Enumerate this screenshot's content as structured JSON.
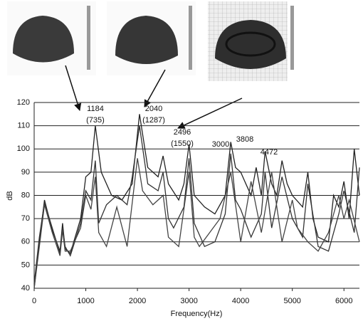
{
  "chart_data": {
    "type": "line",
    "xlabel": "Frequency(Hz)",
    "ylabel": "dB",
    "xlim": [
      0,
      6300
    ],
    "ylim": [
      40,
      120
    ],
    "xticks": [
      0,
      1000,
      2000,
      3000,
      4000,
      5000,
      6000
    ],
    "yticks": [
      40,
      50,
      60,
      70,
      80,
      90,
      100,
      110,
      120
    ],
    "grid": true,
    "annotations": [
      "1184",
      "(735)",
      "2040",
      "(1287)",
      "2496",
      "(1550)",
      "3000",
      "3808",
      "4472"
    ],
    "series": [
      {
        "color": "#222222",
        "x": [
          0,
          100,
          200,
          350,
          500,
          550,
          600,
          700,
          900,
          1000,
          1100,
          1184,
          1300,
          1500,
          1700,
          1900,
          2040,
          2200,
          2400,
          2496,
          2600,
          2800,
          2900,
          3000,
          3100,
          3300,
          3500,
          3700,
          3808,
          3900,
          4000,
          4100,
          4200,
          4300,
          4400,
          4472,
          4600,
          4700,
          4800,
          4900,
          5000,
          5200,
          5300,
          5400,
          5500,
          5700,
          5800,
          5900,
          6000,
          6100,
          6200,
          6300
        ],
        "values": [
          40,
          60,
          78,
          65,
          56,
          68,
          57,
          55,
          70,
          88,
          90,
          110,
          90,
          80,
          78,
          85,
          115,
          92,
          88,
          97,
          85,
          78,
          85,
          102,
          80,
          75,
          72,
          80,
          103,
          92,
          90,
          85,
          80,
          92,
          80,
          99,
          85,
          80,
          95,
          85,
          80,
          75,
          90,
          70,
          62,
          60,
          80,
          75,
          86,
          70,
          100,
          80
        ]
      },
      {
        "color": "#333333",
        "x": [
          0,
          100,
          200,
          350,
          500,
          550,
          600,
          700,
          900,
          1000,
          1100,
          1184,
          1250,
          1400,
          1600,
          1800,
          1900,
          2040,
          2200,
          2400,
          2496,
          2600,
          2700,
          2900,
          3000,
          3100,
          3300,
          3500,
          3700,
          3808,
          3900,
          4000,
          4100,
          4200,
          4400,
          4472,
          4600,
          4800,
          5000,
          5200,
          5300,
          5500,
          5700,
          5900,
          6000,
          6200,
          6300
        ],
        "values": [
          42,
          62,
          77,
          66,
          55,
          66,
          58,
          54,
          68,
          82,
          78,
          95,
          68,
          76,
          80,
          76,
          88,
          110,
          85,
          82,
          90,
          70,
          66,
          75,
          96,
          68,
          58,
          60,
          72,
          98,
          78,
          74,
          68,
          62,
          72,
          90,
          66,
          88,
          70,
          62,
          85,
          58,
          56,
          72,
          82,
          64,
          92
        ]
      },
      {
        "color": "#444444",
        "x": [
          0,
          100,
          200,
          350,
          500,
          550,
          600,
          700,
          900,
          1000,
          1100,
          1184,
          1250,
          1400,
          1600,
          1800,
          2000,
          2100,
          2300,
          2500,
          2600,
          2800,
          3000,
          3100,
          3200,
          3400,
          3600,
          3808,
          3900,
          4000,
          4200,
          4400,
          4600,
          4800,
          5000,
          5100,
          5300,
          5500,
          5700,
          5900,
          6000,
          6100,
          6300
        ],
        "values": [
          40,
          58,
          76,
          64,
          54,
          65,
          56,
          56,
          66,
          80,
          74,
          88,
          64,
          58,
          75,
          58,
          96,
          82,
          76,
          80,
          62,
          58,
          90,
          62,
          58,
          64,
          70,
          90,
          76,
          60,
          86,
          64,
          90,
          60,
          78,
          66,
          60,
          56,
          64,
          80,
          70,
          78,
          60
        ]
      }
    ]
  }
}
